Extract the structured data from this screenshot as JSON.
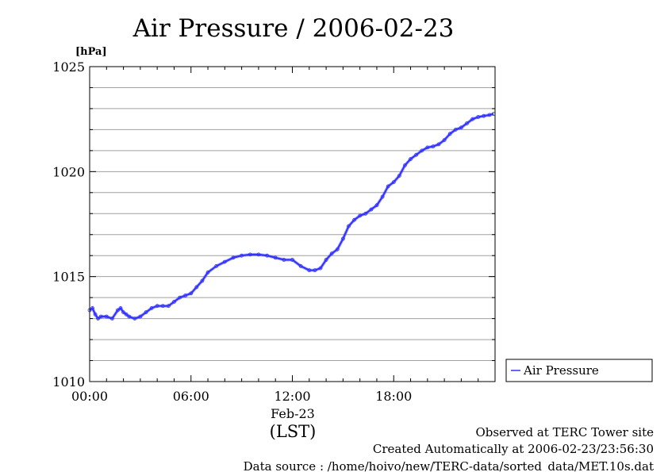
{
  "chart_data": {
    "type": "line",
    "title": "Air Pressure / 2006-02-23",
    "ylabel": "[hPa]",
    "xlabel": "(LST)",
    "x_date_label": "Feb-23",
    "x_tick_labels": [
      "00:00",
      "06:00",
      "12:00",
      "18:00"
    ],
    "x_ticks": [
      "00:00",
      "06:00",
      "12:00",
      "18:00"
    ],
    "xlim": [
      "00:00",
      "24:00"
    ],
    "y_tick_labels": [
      "1010",
      "1015",
      "1020",
      "1025"
    ],
    "y_ticks": [
      1010,
      1015,
      1020,
      1025
    ],
    "ylim": [
      1010,
      1025
    ],
    "grid": "horizontal",
    "legend_position": "right",
    "series": [
      {
        "name": "Air Pressure",
        "color": "#3333ff",
        "x": [
          "00:00",
          "00:10",
          "00:20",
          "00:30",
          "00:40",
          "01:00",
          "01:20",
          "01:40",
          "01:50",
          "02:00",
          "02:10",
          "02:20",
          "02:40",
          "03:00",
          "03:20",
          "03:40",
          "04:00",
          "04:20",
          "04:40",
          "05:00",
          "05:20",
          "05:40",
          "06:00",
          "06:20",
          "06:40",
          "07:00",
          "07:30",
          "08:00",
          "08:30",
          "09:00",
          "09:30",
          "10:00",
          "10:30",
          "11:00",
          "11:30",
          "12:00",
          "12:30",
          "13:00",
          "13:20",
          "13:40",
          "14:00",
          "14:20",
          "14:40",
          "15:00",
          "15:20",
          "15:40",
          "16:00",
          "16:20",
          "16:40",
          "17:00",
          "17:20",
          "17:40",
          "18:00",
          "18:20",
          "18:40",
          "19:00",
          "19:20",
          "19:40",
          "20:00",
          "20:20",
          "20:40",
          "21:00",
          "21:20",
          "21:40",
          "22:00",
          "22:20",
          "22:40",
          "23:00",
          "23:20",
          "23:40",
          "23:55"
        ],
        "values": [
          1013.4,
          1013.5,
          1013.2,
          1013.0,
          1013.1,
          1013.1,
          1013.0,
          1013.4,
          1013.5,
          1013.3,
          1013.2,
          1013.1,
          1013.0,
          1013.1,
          1013.3,
          1013.5,
          1013.6,
          1013.6,
          1013.6,
          1013.8,
          1014.0,
          1014.1,
          1014.2,
          1014.5,
          1014.8,
          1015.2,
          1015.5,
          1015.7,
          1015.9,
          1016.0,
          1016.05,
          1016.05,
          1016.0,
          1015.9,
          1015.8,
          1015.8,
          1015.5,
          1015.3,
          1015.3,
          1015.4,
          1015.8,
          1016.1,
          1016.3,
          1016.8,
          1017.4,
          1017.7,
          1017.9,
          1018.0,
          1018.2,
          1018.4,
          1018.8,
          1019.3,
          1019.5,
          1019.8,
          1020.3,
          1020.6,
          1020.8,
          1021.0,
          1021.15,
          1021.2,
          1021.3,
          1021.5,
          1021.8,
          1022.0,
          1022.1,
          1022.3,
          1022.5,
          1022.6,
          1022.65,
          1022.7,
          1022.75
        ]
      }
    ]
  },
  "footer": {
    "line1": "Observed at TERC Tower site",
    "line2": "Created Automatically at 2006-02-23/23:56:30",
    "line3": "Data source : /home/hoivo/new/TERC-data/sorted_data/MET.10s.dat"
  }
}
